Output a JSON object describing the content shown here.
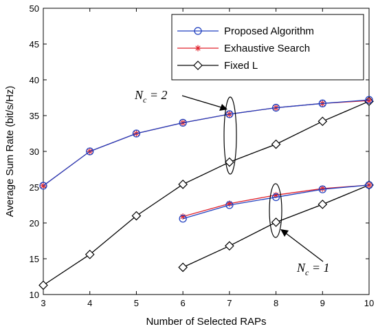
{
  "chart_data": {
    "type": "line",
    "xlabel": "Number of Selected RAPs",
    "ylabel": "Average Sum Rate (bit/s/Hz)",
    "xlim": [
      3,
      10
    ],
    "ylim": [
      10,
      50
    ],
    "xticks": [
      "3",
      "4",
      "5",
      "6",
      "7",
      "8",
      "9",
      "10"
    ],
    "yticks": [
      "10",
      "15",
      "20",
      "25",
      "30",
      "35",
      "40",
      "45",
      "50"
    ],
    "grid": false,
    "legend_position": "top-right",
    "legend": [
      {
        "label": "Proposed Algorithm",
        "color": "#1f3fbf",
        "marker": "circle"
      },
      {
        "label": "Exhaustive Search",
        "color": "#e0202a",
        "marker": "asterisk"
      },
      {
        "label": "Fixed L",
        "color": "#000000",
        "marker": "diamond"
      }
    ],
    "series": [
      {
        "group": "Nc=2",
        "legend_index": 0,
        "x": [
          3,
          4,
          5,
          6,
          7,
          8,
          9,
          10
        ],
        "y": [
          25.2,
          30.0,
          32.5,
          34.0,
          35.2,
          36.1,
          36.7,
          37.2
        ]
      },
      {
        "group": "Nc=2",
        "legend_index": 1,
        "x": [
          3,
          4,
          5,
          6,
          7,
          8,
          9,
          10
        ],
        "y": [
          25.2,
          30.0,
          32.5,
          34.0,
          35.2,
          36.1,
          36.7,
          37.1
        ]
      },
      {
        "group": "Nc=2",
        "legend_index": 2,
        "x": [
          3,
          4,
          5,
          6,
          7,
          8,
          9,
          10
        ],
        "y": [
          11.3,
          15.6,
          21.0,
          25.4,
          28.5,
          31.0,
          34.2,
          37.0
        ]
      },
      {
        "group": "Nc=1",
        "legend_index": 0,
        "x": [
          6,
          7,
          8,
          9,
          10
        ],
        "y": [
          20.6,
          22.5,
          23.6,
          24.7,
          25.3
        ]
      },
      {
        "group": "Nc=1",
        "legend_index": 1,
        "x": [
          6,
          7,
          8,
          9,
          10
        ],
        "y": [
          20.9,
          22.7,
          23.9,
          24.8,
          25.3
        ]
      },
      {
        "group": "Nc=1",
        "legend_index": 2,
        "x": [
          6,
          7,
          8,
          9,
          10
        ],
        "y": [
          13.8,
          16.8,
          20.1,
          22.6,
          25.3
        ]
      }
    ],
    "annotations": [
      {
        "main": "N",
        "sub": "c",
        "rest": " = 2"
      },
      {
        "main": "N",
        "sub": "c",
        "rest": " = 1"
      }
    ]
  }
}
